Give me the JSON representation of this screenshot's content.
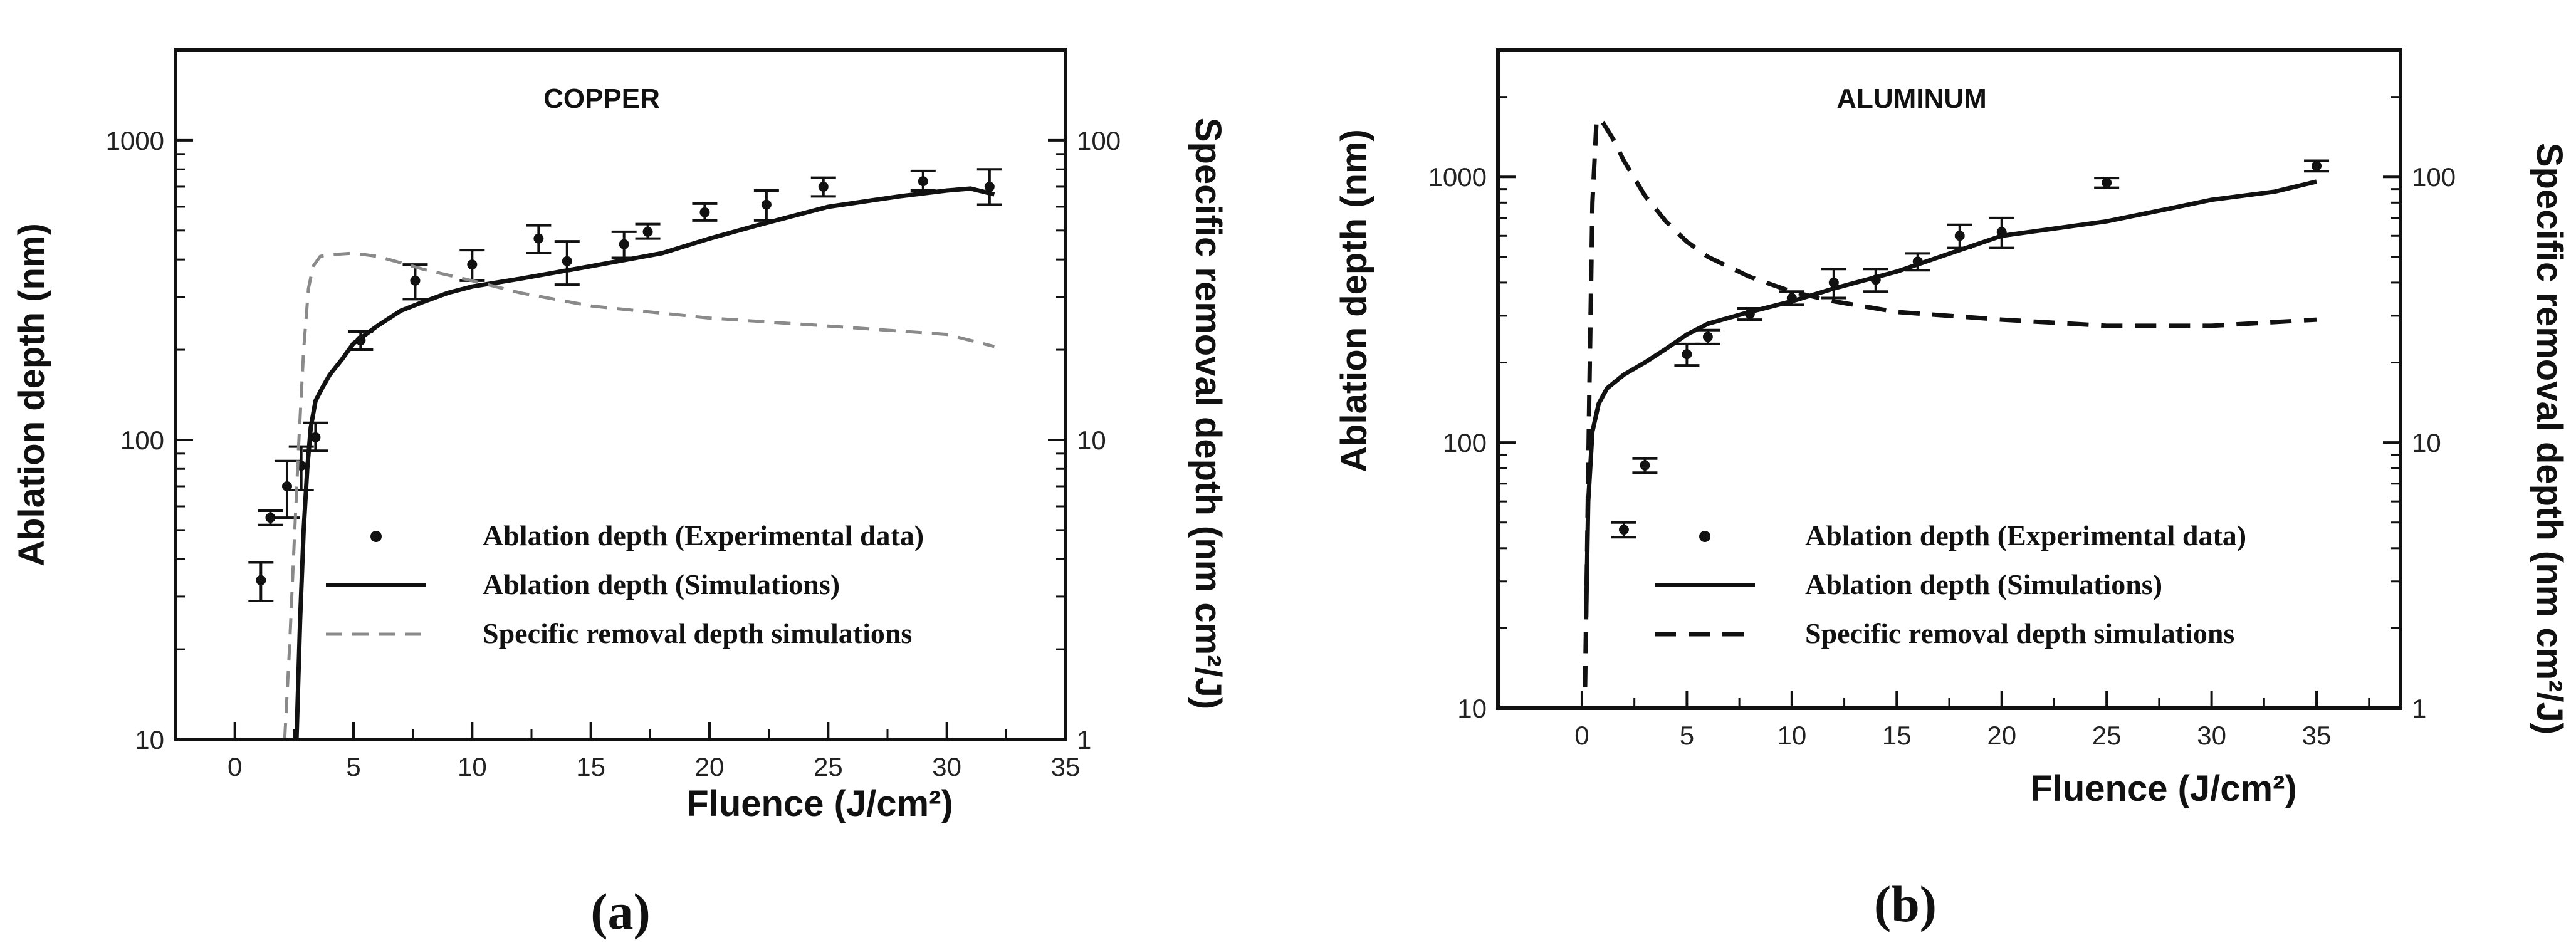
{
  "chart_data": [
    {
      "type": "line",
      "caption": "(a)",
      "title": "COPPER",
      "xlabel": "Fluence (J/cm²)",
      "ylabel_left": "Ablation depth (nm)",
      "ylabel_right": "Specific removal depth (nm cm²/J)",
      "xlim": [
        -2.5,
        35
      ],
      "ylim_left": [
        10,
        2000
      ],
      "ylim_right": [
        1,
        200
      ],
      "xscale": "linear",
      "yscale": "log",
      "x_ticks": [
        0,
        5,
        10,
        15,
        20,
        25,
        30,
        35
      ],
      "x_tick_labels": [
        "0",
        "5",
        "10",
        "15",
        "20",
        "25",
        "30",
        "35"
      ],
      "y_left_ticks": [
        10,
        100,
        1000
      ],
      "y_left_tick_labels": [
        "10",
        "100",
        "1000"
      ],
      "y_right_ticks": [
        1,
        10,
        100
      ],
      "y_right_tick_labels": [
        "1",
        "10",
        "100"
      ],
      "legend": [
        {
          "label": "Ablation depth (Experimental data)",
          "style": "dot"
        },
        {
          "label": "Ablation depth (Simulations)",
          "style": "solid"
        },
        {
          "label": "Specific removal depth simulations",
          "style": "dashed"
        }
      ],
      "series": [
        {
          "name": "Ablation depth (Experimental data)",
          "kind": "points_with_errorbars",
          "axis": "left",
          "x": [
            1.1,
            1.5,
            2.2,
            2.8,
            3.4,
            5.3,
            7.6,
            10.0,
            12.8,
            14.0,
            16.4,
            17.4,
            19.8,
            22.4,
            24.8,
            29.0,
            31.8
          ],
          "y": [
            34,
            55,
            70,
            82,
            102,
            215,
            340,
            385,
            470,
            395,
            450,
            495,
            575,
            610,
            700,
            730,
            700
          ],
          "err_low": [
            29,
            52,
            55,
            68,
            92,
            200,
            295,
            340,
            420,
            330,
            405,
            470,
            540,
            540,
            650,
            680,
            610
          ],
          "err_high": [
            39,
            58,
            85,
            95,
            114,
            230,
            385,
            430,
            520,
            460,
            495,
            525,
            615,
            680,
            750,
            790,
            800
          ]
        },
        {
          "name": "Ablation depth (Simulations)",
          "kind": "line",
          "style": "solid",
          "axis": "left",
          "x": [
            2.6,
            2.75,
            2.9,
            3.05,
            3.2,
            3.4,
            3.7,
            4.0,
            4.5,
            5.0,
            6.0,
            7.0,
            8.0,
            9.0,
            10.0,
            12.0,
            15.0,
            18.0,
            20.0,
            22.0,
            25.0,
            28.0,
            30.0,
            31.0,
            32.0
          ],
          "y": [
            10,
            25,
            50,
            80,
            110,
            135,
            150,
            165,
            185,
            210,
            240,
            270,
            290,
            310,
            325,
            345,
            380,
            420,
            470,
            520,
            600,
            650,
            680,
            690,
            660
          ]
        },
        {
          "name": "Specific removal depth simulations",
          "kind": "line",
          "style": "dashed",
          "color": "#8a8a8a",
          "axis": "right",
          "x": [
            2.1,
            2.3,
            2.5,
            2.7,
            2.9,
            3.1,
            3.3,
            3.6,
            4.0,
            5.0,
            6.0,
            7.0,
            8.0,
            10.0,
            12.0,
            15.0,
            20.0,
            25.0,
            30.0,
            32.0
          ],
          "y": [
            1.0,
            2.0,
            4.5,
            10.0,
            20.0,
            32.0,
            38.0,
            41.0,
            41.5,
            42.0,
            41.0,
            39.0,
            37.0,
            34.0,
            31.0,
            28.0,
            25.5,
            24.0,
            22.5,
            20.5
          ]
        }
      ]
    },
    {
      "type": "line",
      "caption": "(b)",
      "title": "ALUMINUM",
      "xlabel": "Fluence (J/cm²)",
      "ylabel_left": "Ablation depth (nm)",
      "ylabel_right": "Specific removal depth (nm cm²/J)",
      "xlim": [
        -4,
        39
      ],
      "ylim_left": [
        10,
        3000
      ],
      "ylim_right": [
        1,
        300
      ],
      "xscale": "linear",
      "yscale": "log",
      "x_ticks": [
        0,
        5,
        10,
        15,
        20,
        25,
        30,
        35
      ],
      "x_tick_labels": [
        "0",
        "5",
        "10",
        "15",
        "20",
        "25",
        "30",
        "35"
      ],
      "y_left_ticks": [
        10,
        100,
        1000
      ],
      "y_left_tick_labels": [
        "10",
        "100",
        "1000"
      ],
      "y_right_ticks": [
        1,
        10,
        100
      ],
      "y_right_tick_labels": [
        "1",
        "10",
        "100"
      ],
      "legend": [
        {
          "label": "Ablation depth (Experimental data)",
          "style": "dot"
        },
        {
          "label": "Ablation depth (Simulations)",
          "style": "solid"
        },
        {
          "label": "Specific removal depth simulations",
          "style": "dashed"
        }
      ],
      "series": [
        {
          "name": "Ablation depth (Experimental data)",
          "kind": "points_with_errorbars",
          "axis": "left",
          "x": [
            2,
            3,
            5,
            6,
            8,
            10,
            12,
            14,
            16,
            18,
            20,
            25,
            35
          ],
          "y": [
            47,
            82,
            215,
            250,
            305,
            350,
            400,
            410,
            480,
            600,
            620,
            950,
            1100
          ],
          "err_low": [
            44,
            77,
            195,
            235,
            290,
            330,
            350,
            370,
            445,
            540,
            540,
            910,
            1050
          ],
          "err_high": [
            50,
            87,
            235,
            265,
            320,
            370,
            450,
            450,
            515,
            660,
            700,
            990,
            1150
          ]
        },
        {
          "name": "Ablation depth (Simulations)",
          "kind": "line",
          "style": "solid",
          "axis": "left",
          "x": [
            0.2,
            0.3,
            0.5,
            0.8,
            1.2,
            2.0,
            3.0,
            4.0,
            5.0,
            6.0,
            8.0,
            10.0,
            12.0,
            15.0,
            18.0,
            20.0,
            25.0,
            28.0,
            30.0,
            33.0,
            35.0
          ],
          "y": [
            22,
            60,
            110,
            140,
            160,
            180,
            200,
            225,
            255,
            280,
            310,
            340,
            380,
            440,
            530,
            600,
            680,
            760,
            820,
            880,
            960
          ]
        },
        {
          "name": "Specific removal depth simulations",
          "kind": "line",
          "style": "dashed",
          "color": "#111111",
          "axis": "right",
          "x": [
            0.15,
            0.25,
            0.35,
            0.5,
            0.7,
            1.0,
            1.5,
            2.0,
            3.0,
            4.0,
            5.0,
            6.0,
            8.0,
            10.0,
            12.0,
            15.0,
            20.0,
            25.0,
            30.0,
            35.0
          ],
          "y": [
            1.2,
            4.0,
            15.0,
            80.0,
            165.0,
            160.0,
            138.0,
            115.0,
            85.0,
            68.0,
            57.0,
            50.0,
            42.0,
            37.0,
            34.0,
            31.0,
            29.0,
            27.5,
            27.5,
            29.0
          ]
        }
      ]
    }
  ]
}
